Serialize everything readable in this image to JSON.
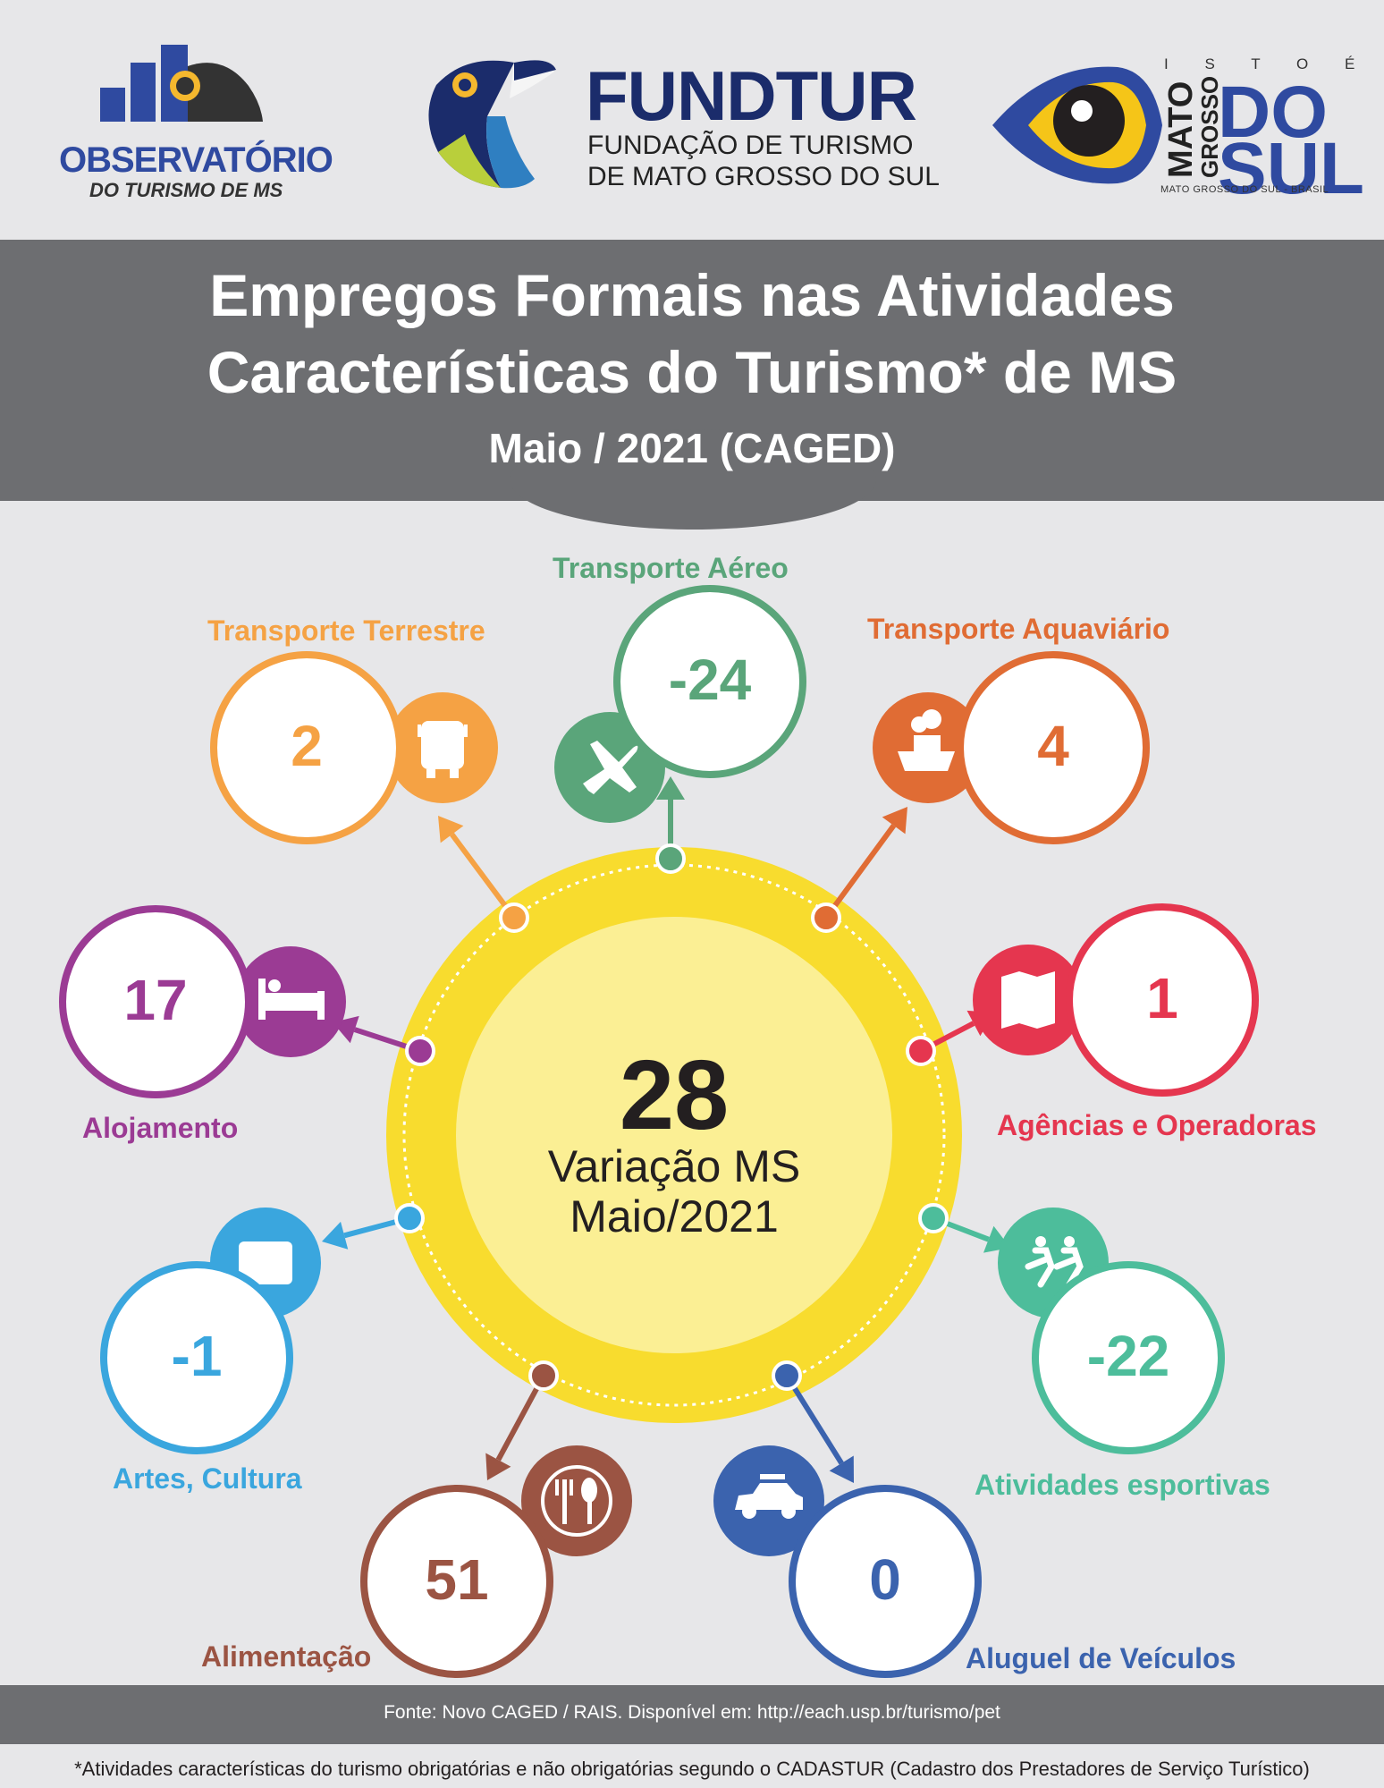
{
  "header": {
    "observatorio": {
      "title": "OBSERVATÓRIO",
      "subtitle": "DO TURISMO DE MS"
    },
    "fundtur": {
      "title": "FUNDTUR",
      "subtitle_line1": "FUNDAÇÃO DE TURISMO",
      "subtitle_line2": "DE MATO GROSSO DO SUL"
    },
    "ms_brand": {
      "top": "I S T O É",
      "mato": "MATO",
      "grosso": "GROSSO",
      "do": "DO",
      "sul": "SUL",
      "bottom": "MATO GROSSO DO SUL - BRASIL"
    }
  },
  "title": {
    "line1": "Empregos Formais nas Atividades",
    "line2": "Características do Turismo* de MS",
    "line3": "Maio / 2021 (CAGED)"
  },
  "center": {
    "value": "28",
    "label_line1": "Variação MS",
    "label_line2": "Maio/2021"
  },
  "categories": [
    {
      "label": "Transporte Aéreo",
      "value": "-24",
      "color": "#5aa57a",
      "icon": "airplane-icon"
    },
    {
      "label": "Transporte Terrestre",
      "value": "2",
      "color": "#f5a244",
      "icon": "bus-icon"
    },
    {
      "label": "Transporte Aquaviário",
      "value": "4",
      "color": "#e06c34",
      "icon": "ship-icon"
    },
    {
      "label": "Alojamento",
      "value": "17",
      "color": "#9b3b94",
      "icon": "bed-icon"
    },
    {
      "label": "Agências e Operadoras",
      "value": "1",
      "color": "#e5364f",
      "icon": "map-icon"
    },
    {
      "label": "Artes, Cultura",
      "value": "-1",
      "color": "#3aa6de",
      "icon": "camera-icon"
    },
    {
      "label": "Atividades esportivas",
      "value": "-22",
      "color": "#4dbd9b",
      "icon": "runners-icon"
    },
    {
      "label": "Alimentação",
      "value": "51",
      "color": "#9b5443",
      "icon": "cutlery-icon"
    },
    {
      "label": "Aluguel de Veículos",
      "value": "0",
      "color": "#3b63ae",
      "icon": "car-icon"
    }
  ],
  "footer": {
    "source": "Fonte: Novo CAGED / RAIS. Disponível em: http://each.usp.br/turismo/pet",
    "note": "*Atividades características do turismo obrigatórias e não obrigatórias segundo o CADASTUR (Cadastro dos Prestadores de Serviço Turístico)"
  }
}
